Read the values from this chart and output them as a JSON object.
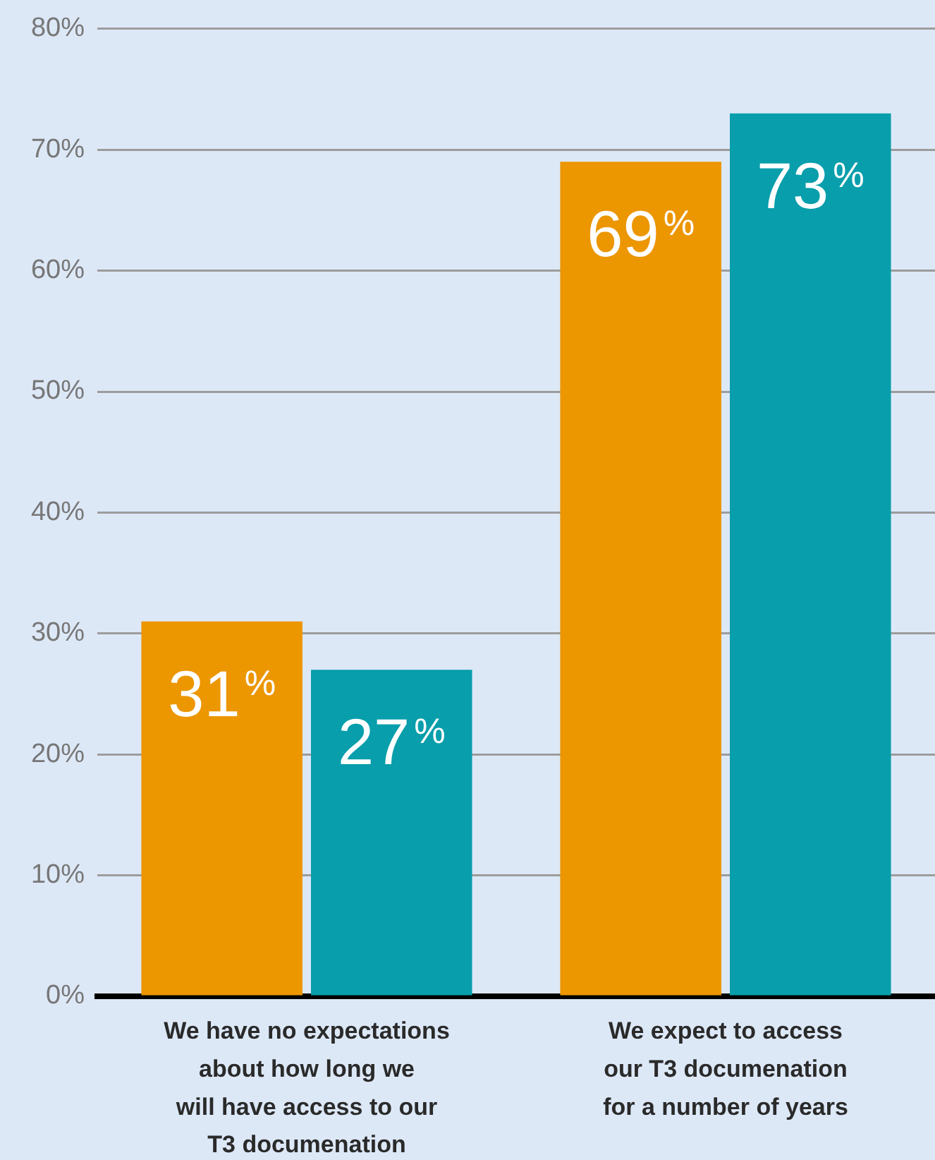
{
  "chart_data": {
    "type": "bar",
    "categories": [
      "We have no expectations\nabout how long we\nwill have access to our\nT3 documenation",
      "We expect to access\nour T3 documenation\nfor a number of years"
    ],
    "series": [
      {
        "color": "#ec9600",
        "values": [
          31,
          69
        ],
        "value_labels": [
          "31$^{%}$",
          "69$^{%}$"
        ]
      },
      {
        "color": "#089eab",
        "values": [
          27,
          73
        ],
        "value_labels": [
          "27$^{%}$",
          "73$^{%}$"
        ]
      }
    ],
    "ylim": [
      0,
      80
    ],
    "yticks": [
      {
        "value": 0,
        "label": "0%"
      },
      {
        "value": 10,
        "label": "10%"
      },
      {
        "value": 20,
        "label": "20%"
      },
      {
        "value": 30,
        "label": "30%"
      },
      {
        "value": 40,
        "label": "40%"
      },
      {
        "value": 50,
        "label": "50%"
      },
      {
        "value": 60,
        "label": "60%"
      },
      {
        "value": 70,
        "label": "70%"
      },
      {
        "value": 80,
        "label": "80%"
      }
    ],
    "grid": "y",
    "legend": false
  }
}
